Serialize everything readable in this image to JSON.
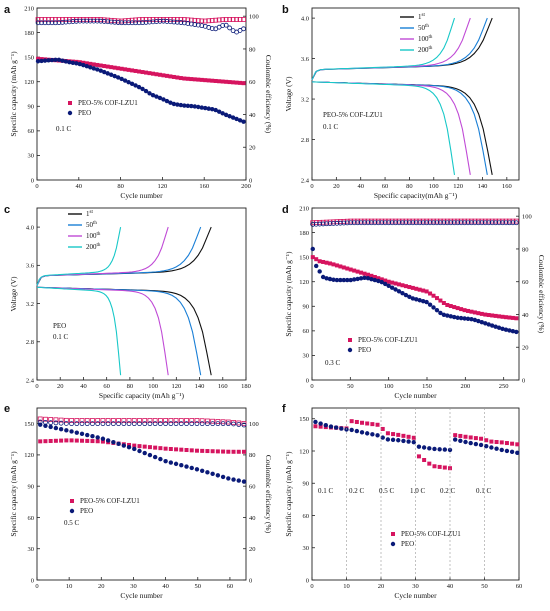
{
  "chart_data": [
    {
      "panel": "a",
      "type": "scatter",
      "xlabel": "Cycle number",
      "ylabel": "Specific capacity (mAh g⁻¹)",
      "y2label": "Coulombic efficiency (%)",
      "xlim": [
        0,
        200
      ],
      "ylim": [
        0,
        210
      ],
      "y2lim": [
        0,
        105
      ],
      "xticks": [
        "0",
        "40",
        "80",
        "120",
        "160",
        "200"
      ],
      "yticks": [
        "0",
        "30",
        "60",
        "90",
        "120",
        "150",
        "180",
        "210"
      ],
      "y2ticks": [
        "0",
        "20",
        "40",
        "60",
        "80",
        "100"
      ],
      "legend": [
        "PEO-5% COF-LZU1",
        "PEO"
      ],
      "annotations": [
        "0.1 C"
      ],
      "series": [
        {
          "name": "PEO-5% COF-LZU1",
          "axis": "left",
          "color": "#d6145f",
          "marker": "square-filled",
          "x": [
            1,
            10,
            20,
            30,
            40,
            50,
            60,
            70,
            80,
            90,
            100,
            110,
            120,
            130,
            140,
            150,
            160,
            170,
            180,
            190,
            200
          ],
          "y": [
            148,
            147,
            146,
            145,
            144,
            142,
            140,
            138,
            136,
            134,
            132,
            130,
            128,
            126,
            124,
            123,
            122,
            121,
            120,
            119,
            118
          ]
        },
        {
          "name": "PEO",
          "axis": "left",
          "color": "#0a1a78",
          "marker": "circle-filled",
          "x": [
            1,
            10,
            20,
            30,
            40,
            50,
            60,
            70,
            80,
            90,
            100,
            110,
            120,
            130,
            140,
            150,
            160,
            170,
            180,
            190,
            200
          ],
          "y": [
            145,
            146,
            147,
            144,
            142,
            138,
            134,
            129,
            124,
            118,
            112,
            104,
            99,
            93,
            91,
            90,
            88,
            86,
            80,
            75,
            70
          ]
        },
        {
          "name": "PEO-5% COF-LZU1 CE",
          "axis": "right",
          "color": "#d6145f",
          "marker": "square-open",
          "x": [
            1,
            20,
            40,
            60,
            80,
            100,
            120,
            140,
            160,
            180,
            200
          ],
          "y": [
            98,
            98,
            98,
            98,
            97,
            98,
            98,
            98,
            97,
            98,
            98
          ]
        },
        {
          "name": "PEO CE",
          "axis": "right",
          "color": "#0a1a78",
          "marker": "circle-open",
          "x": [
            1,
            20,
            40,
            60,
            80,
            100,
            120,
            140,
            160,
            170,
            180,
            190,
            200
          ],
          "y": [
            96,
            96,
            97,
            97,
            96,
            96,
            97,
            96,
            94,
            92,
            95,
            90,
            93
          ]
        }
      ]
    },
    {
      "panel": "b",
      "type": "line",
      "xlabel": "Specific capacity(mAh g⁻¹)",
      "ylabel": "Voltage (V)",
      "xlim": [
        0,
        170
      ],
      "ylim": [
        2.4,
        4.1
      ],
      "xticks": [
        "0",
        "20",
        "40",
        "60",
        "80",
        "100",
        "120",
        "140",
        "160"
      ],
      "yticks": [
        "2.4",
        "2.8",
        "3.2",
        "3.6",
        "4.0"
      ],
      "legend": [
        {
          "base": "1",
          "sup": "st"
        },
        {
          "base": "50",
          "sup": "th"
        },
        {
          "base": "100",
          "sup": "th"
        },
        {
          "base": "200",
          "sup": "th"
        }
      ],
      "annotations": [
        "PEO-5% COF-LZU1",
        "0.1 C"
      ],
      "series": [
        {
          "name": "1st",
          "color": "#111111",
          "capacity": 148
        },
        {
          "name": "50th",
          "color": "#1a7fd6",
          "capacity": 144
        },
        {
          "name": "100th",
          "color": "#c04bd6",
          "capacity": 130
        },
        {
          "name": "200th",
          "color": "#18c8c8",
          "capacity": 117
        }
      ]
    },
    {
      "panel": "c",
      "type": "line",
      "xlabel": "Specific capacity (mAh g⁻¹)",
      "ylabel": "Voltage (V)",
      "xlim": [
        0,
        180
      ],
      "ylim": [
        2.4,
        4.2
      ],
      "xticks": [
        "0",
        "20",
        "40",
        "60",
        "80",
        "100",
        "120",
        "140",
        "160",
        "180"
      ],
      "yticks": [
        "2.4",
        "2.8",
        "3.2",
        "3.6",
        "4.0"
      ],
      "legend": [
        {
          "base": "1",
          "sup": "st"
        },
        {
          "base": "50",
          "sup": "th"
        },
        {
          "base": "100",
          "sup": "th"
        },
        {
          "base": "200",
          "sup": "th"
        }
      ],
      "annotations": [
        "PEO",
        "0.1 C"
      ],
      "series": [
        {
          "name": "1st",
          "color": "#111111",
          "capacity": 150
        },
        {
          "name": "50th",
          "color": "#1a7fd6",
          "capacity": 141
        },
        {
          "name": "100th",
          "color": "#c04bd6",
          "capacity": 113
        },
        {
          "name": "200th",
          "color": "#18c8c8",
          "capacity": 72
        }
      ]
    },
    {
      "panel": "d",
      "type": "scatter",
      "xlabel": "Cycle number",
      "ylabel": "Specific capacity (mAh g⁻¹)",
      "y2label": "Coulombic efficiency (%)",
      "xlim": [
        0,
        270
      ],
      "ylim": [
        0,
        210
      ],
      "y2lim": [
        0,
        105
      ],
      "xticks": [
        "0",
        "50",
        "100",
        "150",
        "200",
        "250"
      ],
      "yticks": [
        "0",
        "30",
        "60",
        "90",
        "120",
        "150",
        "180",
        "210"
      ],
      "y2ticks": [
        "0",
        "20",
        "40",
        "60",
        "80",
        "100"
      ],
      "legend": [
        "PEO-5% COF-LZU1",
        "PEO"
      ],
      "annotations": [
        "0.3 C"
      ],
      "series": [
        {
          "name": "PEO-5% COF-LZU1",
          "axis": "left",
          "color": "#d6145f",
          "marker": "square-filled",
          "x": [
            1,
            10,
            25,
            50,
            75,
            100,
            125,
            150,
            160,
            175,
            200,
            225,
            250,
            270
          ],
          "y": [
            150,
            145,
            142,
            135,
            128,
            120,
            114,
            108,
            102,
            92,
            85,
            80,
            77,
            75
          ]
        },
        {
          "name": "PEO",
          "axis": "left",
          "color": "#0a1a78",
          "marker": "circle-filled",
          "x": [
            1,
            5,
            15,
            30,
            50,
            70,
            90,
            110,
            130,
            150,
            170,
            190,
            210,
            230,
            250,
            270
          ],
          "y": [
            160,
            140,
            125,
            122,
            122,
            125,
            120,
            110,
            100,
            95,
            80,
            76,
            74,
            68,
            62,
            58
          ]
        },
        {
          "name": "PEO-5% COF-LZU1 CE",
          "axis": "right",
          "color": "#d6145f",
          "marker": "square-open",
          "x": [
            1,
            50,
            100,
            150,
            200,
            250,
            270
          ],
          "y": [
            96,
            97,
            97,
            97,
            97,
            97,
            97
          ]
        },
        {
          "name": "PEO CE",
          "axis": "right",
          "color": "#0a1a78",
          "marker": "circle-open",
          "x": [
            1,
            50,
            100,
            150,
            200,
            250,
            270
          ],
          "y": [
            95,
            96,
            96,
            96,
            96,
            96,
            96
          ]
        }
      ]
    },
    {
      "panel": "e",
      "type": "scatter",
      "xlabel": "Cycle number",
      "ylabel": "Specific capacity (mAh g⁻¹)",
      "y2label": "Coulombic efficiency (%)",
      "xlim": [
        0,
        65
      ],
      "ylim": [
        0,
        165
      ],
      "y2lim": [
        0,
        110
      ],
      "xticks": [
        "0",
        "10",
        "20",
        "30",
        "40",
        "50",
        "60"
      ],
      "yticks": [
        "0",
        "30",
        "60",
        "90",
        "120",
        "150"
      ],
      "y2ticks": [
        "0",
        "20",
        "40",
        "60",
        "80",
        "100"
      ],
      "legend": [
        "PEO-5% COF-LZU1",
        "PEO"
      ],
      "annotations": [
        "0.5 C"
      ],
      "series": [
        {
          "name": "PEO-5% COF-LZU1",
          "axis": "left",
          "color": "#d6145f",
          "marker": "square-filled",
          "x": [
            1,
            10,
            20,
            30,
            40,
            50,
            60,
            65
          ],
          "y": [
            133,
            134,
            133,
            129,
            126,
            124,
            123,
            123
          ]
        },
        {
          "name": "PEO",
          "axis": "left",
          "color": "#0a1a78",
          "marker": "circle-filled",
          "x": [
            1,
            10,
            20,
            30,
            40,
            50,
            60,
            65
          ],
          "y": [
            149,
            143,
            136,
            126,
            114,
            106,
            97,
            94
          ]
        },
        {
          "name": "PEO-5% COF-LZU1 CE",
          "axis": "right",
          "color": "#d6145f",
          "marker": "square-open",
          "x": [
            1,
            10,
            20,
            30,
            40,
            50,
            60,
            65
          ],
          "y": [
            103,
            102,
            102,
            102,
            102,
            102,
            101,
            100
          ]
        },
        {
          "name": "PEO CE",
          "axis": "right",
          "color": "#0a1a78",
          "marker": "circle-open",
          "x": [
            1,
            10,
            20,
            30,
            40,
            50,
            60,
            65
          ],
          "y": [
            101,
            100,
            100,
            100,
            100,
            100,
            100,
            99
          ]
        }
      ]
    },
    {
      "panel": "f",
      "type": "scatter",
      "xlabel": "Cycle number",
      "ylabel": "Specific capacity (mAh g⁻¹)",
      "xlim": [
        0,
        60
      ],
      "ylim": [
        0,
        160
      ],
      "xticks": [
        "0",
        "10",
        "20",
        "30",
        "40",
        "50",
        "60"
      ],
      "yticks": [
        "0",
        "30",
        "60",
        "90",
        "120",
        "150"
      ],
      "legend": [
        "PEO-5% COF-LZU1",
        "PEO"
      ],
      "rate_labels": [
        "0.1 C",
        "0.2 C",
        "0.5 C",
        "1.0 C",
        "0.2 C",
        "0.1 C"
      ],
      "series": [
        {
          "name": "PEO-5% COF-LZU1",
          "color": "#d6145f",
          "marker": "square-filled",
          "x": [
            1,
            5,
            10,
            11,
            15,
            20,
            21,
            25,
            30,
            31,
            35,
            40,
            41,
            45,
            50,
            51,
            55,
            60
          ],
          "y": [
            143,
            142,
            141,
            148,
            146,
            144,
            137,
            135,
            132,
            115,
            106,
            104,
            135,
            133,
            131,
            129,
            128,
            126
          ]
        },
        {
          "name": "PEO",
          "color": "#0a1a78",
          "marker": "circle-filled",
          "x": [
            1,
            5,
            10,
            11,
            15,
            20,
            21,
            25,
            30,
            31,
            35,
            40,
            41,
            45,
            50,
            51,
            55,
            60
          ],
          "y": [
            147,
            143,
            140,
            140,
            137,
            134,
            131,
            130,
            128,
            124,
            122,
            121,
            131,
            128,
            125,
            124,
            121,
            118
          ]
        }
      ]
    }
  ]
}
